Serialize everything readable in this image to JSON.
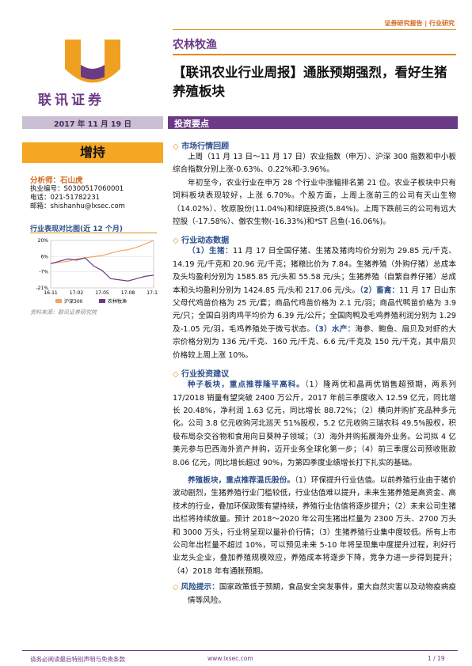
{
  "header": {
    "label": "证券研究报告 | 行业研究",
    "logo_text": "联讯证券",
    "category": "农林牧渔",
    "title": "【联讯农业行业周报】通胀预期强烈，看好生猪养殖板块"
  },
  "date": "2017 年 11 月 19 日",
  "section_title": "投资要点",
  "rating": "增持",
  "analyst": {
    "name": "分析师：石山虎",
    "id": "执业编号：S0300517060001",
    "phone": "电话：021-51782231",
    "email": "邮箱：shishanhu@lxsec.com"
  },
  "chart_data": {
    "type": "line",
    "title": "行业表现对比图(近 12 个月)",
    "categories": [
      "16-11",
      null,
      null,
      "17-02",
      null,
      null,
      "17-05",
      null,
      null,
      "17-08",
      null,
      null,
      "17-11"
    ],
    "series": [
      {
        "name": "沪深300",
        "color": "#f4a261",
        "values": [
          0,
          1,
          2,
          4,
          5,
          6,
          7,
          9,
          11,
          12,
          14,
          17,
          20
        ]
      },
      {
        "name": "农林牧渔",
        "color": "#6b3a86",
        "values": [
          0,
          2,
          4,
          3,
          5,
          -2,
          -6,
          -13,
          -14,
          -15,
          -13,
          -11,
          -10
        ]
      }
    ],
    "ylim": [
      -21,
      20
    ],
    "yticks": [
      {
        "value": 20,
        "label": "20%"
      },
      {
        "value": 6,
        "label": "6%"
      },
      {
        "value": -7,
        "label": "-7%"
      },
      {
        "value": -21,
        "label": "-21%"
      }
    ],
    "source": "资料来源：联讯证券研究院"
  },
  "market": {
    "heading": "市场行情回顾",
    "paragraphs": [
      "上周（11 月 13 日～11 月 17 日）农业指数（申万）、沪深 300 指数和中小板综合指数分别上涨-0.63%、0.22%和-3.96%。",
      "年初至今，农业行业在申万 28 个行业中涨幅排名第 21 位。农业子板块中只有饲料板块表现较好，上涨 6.70%。个股方面，上周上涨前三的公司有天山生物（14.02%）、牧原股份(11.04%)和绿庭投资(5.84%)。上周下跌前三的公司有远大控股（-17.58%）、傲农生物(-16.33%)和*ST 吕鱼(-16.06%)。"
    ]
  },
  "dynamics": {
    "heading": "行业动态数据",
    "items": [
      {
        "label": "（1）生猪：",
        "text": "11 月 17 日全国仔猪、生猪及猪肉均价分别为 29.85 元/千克、14.19 元/千克和 20.96 元/千克；猪粮比价为 7.84。生猪养殖（外购仔猪）总成本及头均盈利分别为 1585.85 元/头和 55.58 元/头；生猪养殖（自繁自养仔猪）总成本和头均盈利分别为 1424.85 元/头和 217.06 元/头。"
      },
      {
        "label": "（2）畜禽：",
        "text": "11 月 17 日山东父母代鸡苗价格为 25 元/套；商品代鸡苗价格为 2.1 元/羽；商品代鸭苗价格为 3.9 元/只；全国白羽肉鸡平均价为 6.39 元/公斤；全国肉鸭及毛鸡养殖利润分别为 1.29 及-1.05 元/羽，毛鸡养殖处于微亏状态。"
      },
      {
        "label": "（3）水产：",
        "text": "海参、鲍鱼、扇贝及对虾的大宗价格分别为 136 元/千克、160 元/千克、6.6 元/千克及 150 元/千克，其中扇贝价格较上周上涨 10%。"
      }
    ]
  },
  "advice": {
    "heading": "行业投资建议",
    "paragraphs": [
      {
        "lead": "种子板块，重点推荐隆平高科。",
        "text": "（1）隆两优和晶两优销售超预期，两系列 17/2018 销量有望突破 2400 万公斤，2017 年前三季度收入 12.59 亿元，同比增长 20.48%，净利润 1.63 亿元，同比增长 88.72%；（2）横向并购扩充品种多元化。公司 3.8 亿元收购河北巡天 51%股权，5.2 亿元收购三瑞农科 49.5%股权，积极布局杂交谷物和食用向日葵种子领域；（3）海外并购拓展海外业务。公司拟 4 亿美元参与巴西海外资产并购，迈开业务全球化第一步；（4）前三季度公司预收账款 8.06 亿元，同比增长超过 90%，为第四季度业绩增长打下扎实的基础。"
      },
      {
        "lead": "养殖板块，重点推荐温氏股份。",
        "text": "（1）环保提升行业估值。以前养殖行业由于猪价波动剧烈，生猪养殖行业门槛较低，行业估值难以提升，未来生猪养殖是高资金、高技术的行业，叠加环保政策有望持续，养殖行业估值将逐步提升；（2）未来公司生猪出栏将持续放量。预计 2018～2020 年公司生猪出栏量为 2300 万头、2700 万头和 3000 万头，行业将呈现以量补价行情；（3）生猪养殖行业集中度较低。所有上市公司年出栏量不超过 10%，可以预见未来 5-10 年将呈现集中度提升过程，利好行业龙头企业，叠加养殖规模效应，养殖成本将逐步下降，竞争力进一步得到提升；（4）2018 年有通胀预期。"
      }
    ]
  },
  "risk": {
    "heading": "风险提示：",
    "text": "国家政策低于预期，食品安全突发事件，重大自然灾害以及动物疫病疫情等风险。"
  },
  "footer": {
    "disclaimer": "请务必阅读最后特别声明与免责条款",
    "site": "www.lxsec.com",
    "page": "1 / 19"
  }
}
